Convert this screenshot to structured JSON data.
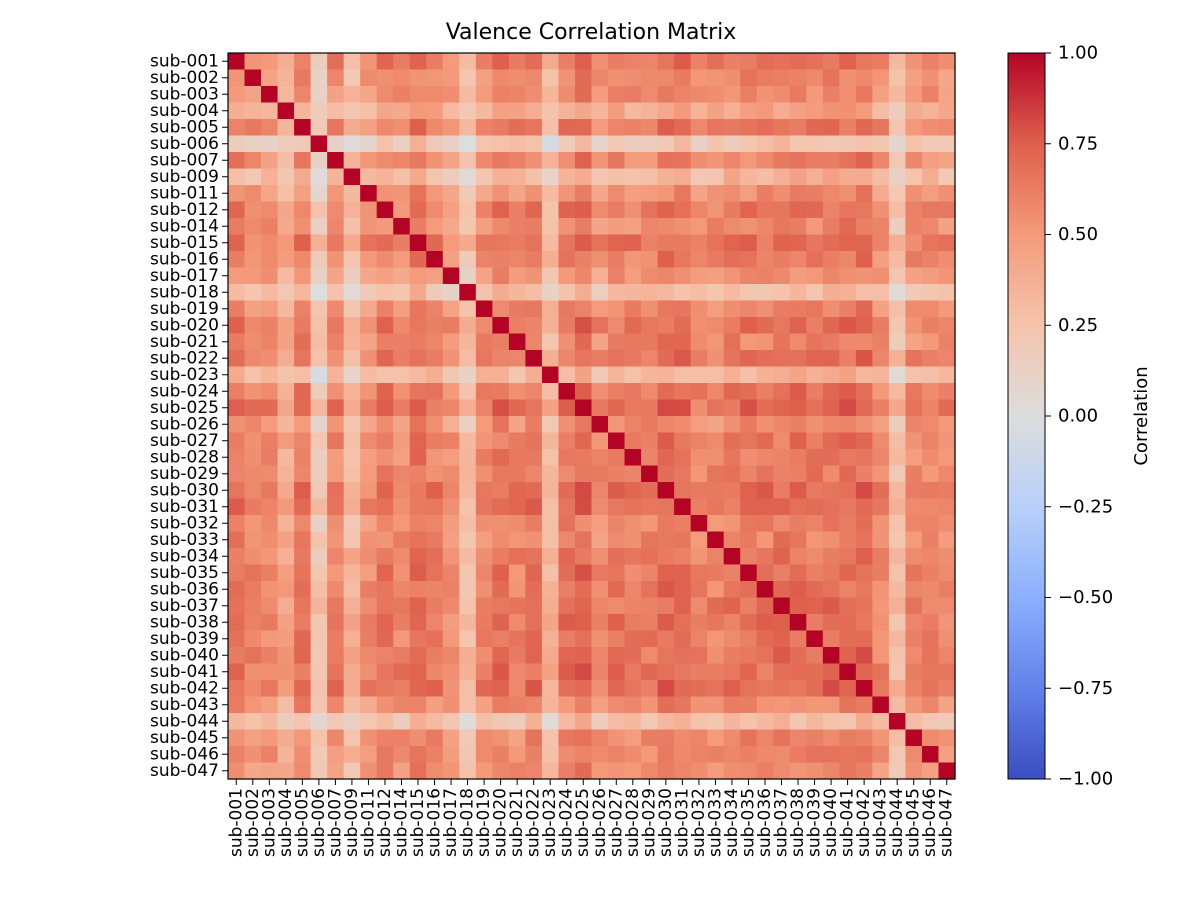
{
  "chart_data": {
    "type": "heatmap",
    "title": "Valence Correlation Matrix",
    "xlabel": "",
    "ylabel": "",
    "labels": [
      "sub-001",
      "sub-002",
      "sub-003",
      "sub-004",
      "sub-005",
      "sub-006",
      "sub-007",
      "sub-009",
      "sub-011",
      "sub-012",
      "sub-014",
      "sub-015",
      "sub-016",
      "sub-017",
      "sub-018",
      "sub-019",
      "sub-020",
      "sub-021",
      "sub-022",
      "sub-023",
      "sub-024",
      "sub-025",
      "sub-026",
      "sub-027",
      "sub-028",
      "sub-029",
      "sub-030",
      "sub-031",
      "sub-032",
      "sub-033",
      "sub-034",
      "sub-035",
      "sub-036",
      "sub-037",
      "sub-038",
      "sub-039",
      "sub-040",
      "sub-041",
      "sub-042",
      "sub-043",
      "sub-044",
      "sub-045",
      "sub-046",
      "sub-047"
    ],
    "subject_mean_corr": [
      0.55,
      0.42,
      0.42,
      0.3,
      0.55,
      -0.05,
      0.45,
      0.15,
      0.35,
      0.55,
      0.42,
      0.62,
      0.5,
      0.32,
      0.05,
      0.45,
      0.58,
      0.45,
      0.55,
      0.12,
      0.58,
      0.68,
      0.4,
      0.52,
      0.48,
      0.5,
      0.62,
      0.62,
      0.4,
      0.45,
      0.55,
      0.55,
      0.55,
      0.58,
      0.6,
      0.55,
      0.6,
      0.62,
      0.65,
      0.4,
      0.03,
      0.42,
      0.45,
      0.38
    ],
    "diagonal": 1.0,
    "colorscale": "coolwarm",
    "vmin": -1.0,
    "vmax": 1.0,
    "colorbar_label": "Correlation",
    "colorbar_ticks": [
      "1.00",
      "0.75",
      "0.50",
      "0.25",
      "0.00",
      "−0.25",
      "−0.50",
      "−0.75",
      "−1.00"
    ],
    "colorbar_tick_values": [
      1.0,
      0.75,
      0.5,
      0.25,
      0.0,
      -0.25,
      -0.5,
      -0.75,
      -1.0
    ]
  }
}
